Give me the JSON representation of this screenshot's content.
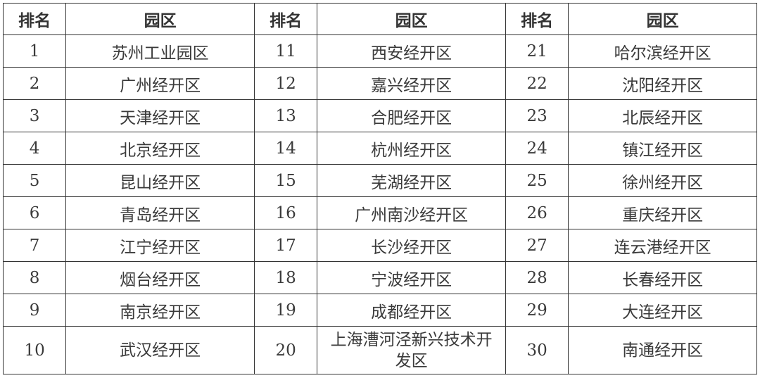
{
  "headers": [
    "排名",
    "园区",
    "排名",
    "园区",
    "排名",
    "园区"
  ],
  "rows": [
    {
      "r1": "1",
      "p1": "苏州工业园区",
      "r2": "11",
      "p2": "西安经开区",
      "r3": "21",
      "p3": "哈尔滨经开区"
    },
    {
      "r1": "2",
      "p1": "广州经开区",
      "r2": "12",
      "p2": "嘉兴经开区",
      "r3": "22",
      "p3": "沈阳经开区"
    },
    {
      "r1": "3",
      "p1": "天津经开区",
      "r2": "13",
      "p2": "合肥经开区",
      "r3": "23",
      "p3": "北辰经开区"
    },
    {
      "r1": "4",
      "p1": "北京经开区",
      "r2": "14",
      "p2": "杭州经开区",
      "r3": "24",
      "p3": "镇江经开区"
    },
    {
      "r1": "5",
      "p1": "昆山经开区",
      "r2": "15",
      "p2": "芜湖经开区",
      "r3": "25",
      "p3": "徐州经开区"
    },
    {
      "r1": "6",
      "p1": "青岛经开区",
      "r2": "16",
      "p2": "广州南沙经开区",
      "r3": "26",
      "p3": "重庆经开区"
    },
    {
      "r1": "7",
      "p1": "江宁经开区",
      "r2": "17",
      "p2": "长沙经开区",
      "r3": "27",
      "p3": "连云港经开区"
    },
    {
      "r1": "8",
      "p1": "烟台经开区",
      "r2": "18",
      "p2": "宁波经开区",
      "r3": "28",
      "p3": "长春经开区"
    },
    {
      "r1": "9",
      "p1": "南京经开区",
      "r2": "19",
      "p2": "成都经开区",
      "r3": "29",
      "p3": "大连经开区"
    },
    {
      "r1": "10",
      "p1": "武汉经开区",
      "r2": "20",
      "p2": "上海漕河泾新兴技术开发区",
      "r3": "30",
      "p3": "南通经开区"
    }
  ]
}
